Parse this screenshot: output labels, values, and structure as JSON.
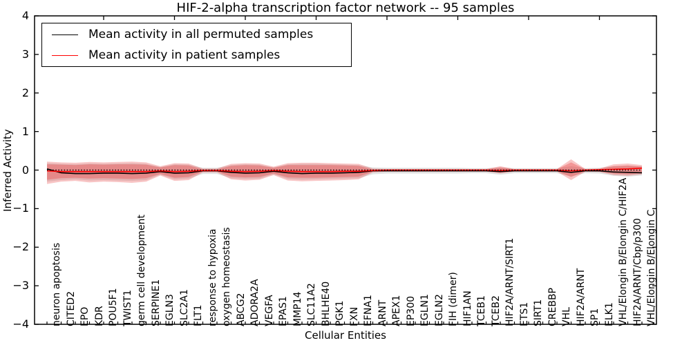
{
  "title": "HIF-2-alpha transcription factor network -- 95 samples",
  "axes": {
    "ylabel": "Inferred Activity",
    "xlabel": "Cellular Entities",
    "yticks": [
      "4",
      "3",
      "2",
      "1",
      "0",
      "−1",
      "−2",
      "−3",
      "−4"
    ]
  },
  "legend": {
    "items": [
      {
        "label": "Mean activity in all permuted samples",
        "color": "#000000"
      },
      {
        "label": "Mean activity in patient samples",
        "color": "#ff0000"
      }
    ]
  },
  "chart_data": {
    "type": "line",
    "title": "HIF-2-alpha transcription factor network -- 95 samples",
    "xlabel": "Cellular Entities",
    "ylabel": "Inferred Activity",
    "ylim": [
      -4,
      4
    ],
    "grid": false,
    "legend_position": "upper left",
    "zero_line": 0,
    "categories": [
      "neuron apoptosis",
      "CITED2",
      "EPO",
      "KDR",
      "POU5F1",
      "TWIST1",
      "germ cell development",
      "SERPINE1",
      "EGLN3",
      "SLC2A1",
      "FLT1",
      "response to hypoxia",
      "oxygen homeostasis",
      "ABCG2",
      "ADORA2A",
      "VEGFA",
      "EPAS1",
      "MMP14",
      "SLC11A2",
      "BHLHE40",
      "PGK1",
      "FXN",
      "EFNA1",
      "ARNT",
      "APEX1",
      "EP300",
      "EGLN1",
      "EGLN2",
      "FIH (dimer)",
      "HIF1AN",
      "TCEB1",
      "TCEB2",
      "HIF2A/ARNT/SIRT1",
      "ETS1",
      "SIRT1",
      "CREBBP",
      "VHL",
      "HIF2A/ARNT",
      "SP1",
      "ELK1",
      "VHL/Elongin B/Elongin C/HIF2A",
      "HIF2A/ARNT/Cbp/p300",
      "VHL/Elongin B/Elongin C"
    ],
    "series": [
      {
        "name": "Mean activity in all permuted samples",
        "color": "#000000",
        "style": "solid",
        "values": [
          0.03,
          -0.07,
          -0.09,
          -0.09,
          -0.08,
          -0.08,
          -0.09,
          -0.08,
          -0.04,
          -0.08,
          -0.07,
          -0.02,
          -0.02,
          -0.06,
          -0.08,
          -0.07,
          -0.03,
          -0.07,
          -0.09,
          -0.08,
          -0.08,
          -0.07,
          -0.06,
          -0.02,
          -0.02,
          -0.02,
          -0.02,
          -0.02,
          -0.02,
          -0.02,
          -0.02,
          -0.02,
          -0.04,
          -0.02,
          -0.02,
          -0.02,
          -0.02,
          -0.06,
          -0.02,
          -0.02,
          -0.05,
          -0.06,
          -0.07
        ]
      },
      {
        "name": "Mean activity in patient samples",
        "color": "#ff0000",
        "style": "solid",
        "values": [
          -0.02,
          -0.04,
          -0.04,
          -0.04,
          -0.04,
          -0.04,
          -0.04,
          -0.04,
          -0.02,
          -0.04,
          -0.03,
          -0.01,
          -0.01,
          -0.03,
          -0.04,
          -0.03,
          -0.01,
          -0.03,
          -0.04,
          -0.04,
          -0.04,
          -0.03,
          -0.03,
          -0.01,
          0.0,
          0.0,
          0.0,
          0.0,
          0.0,
          0.0,
          0.0,
          0.0,
          -0.01,
          0.0,
          0.0,
          0.0,
          0.0,
          -0.02,
          0.0,
          0.01,
          0.02,
          0.03,
          0.05
        ]
      }
    ],
    "bands": [
      {
        "name": "permuted-range",
        "color": "#999999",
        "opacity": 0.28,
        "upper": [
          0.18,
          0.16,
          0.15,
          0.17,
          0.16,
          0.17,
          0.18,
          0.16,
          0.08,
          0.15,
          0.14,
          0.06,
          0.06,
          0.13,
          0.15,
          0.14,
          0.07,
          0.15,
          0.16,
          0.16,
          0.15,
          0.14,
          0.13,
          0.07,
          0.06,
          0.06,
          0.06,
          0.06,
          0.06,
          0.06,
          0.05,
          0.05,
          0.07,
          0.05,
          0.05,
          0.05,
          0.05,
          0.1,
          0.05,
          0.06,
          0.1,
          0.11,
          0.1
        ],
        "lower": [
          -0.3,
          -0.26,
          -0.24,
          -0.27,
          -0.26,
          -0.27,
          -0.28,
          -0.26,
          -0.12,
          -0.24,
          -0.22,
          -0.1,
          -0.1,
          -0.21,
          -0.23,
          -0.22,
          -0.11,
          -0.23,
          -0.25,
          -0.24,
          -0.23,
          -0.22,
          -0.21,
          -0.11,
          -0.09,
          -0.09,
          -0.09,
          -0.09,
          -0.09,
          -0.09,
          -0.08,
          -0.08,
          -0.12,
          -0.08,
          -0.08,
          -0.08,
          -0.08,
          -0.16,
          -0.08,
          -0.09,
          -0.15,
          -0.17,
          -0.14
        ]
      },
      {
        "name": "patient-outer",
        "color": "#e84040",
        "opacity": 0.3,
        "upper": [
          0.22,
          0.2,
          0.19,
          0.21,
          0.2,
          0.21,
          0.22,
          0.2,
          0.1,
          0.18,
          0.17,
          0.04,
          0.04,
          0.16,
          0.18,
          0.17,
          0.09,
          0.18,
          0.19,
          0.19,
          0.18,
          0.17,
          0.16,
          0.04,
          0.03,
          0.03,
          0.03,
          0.03,
          0.03,
          0.03,
          0.03,
          0.03,
          0.1,
          0.03,
          0.03,
          0.03,
          0.03,
          0.28,
          0.03,
          0.04,
          0.15,
          0.17,
          0.13
        ],
        "lower": [
          -0.36,
          -0.3,
          -0.28,
          -0.32,
          -0.3,
          -0.31,
          -0.33,
          -0.3,
          -0.14,
          -0.28,
          -0.26,
          -0.06,
          -0.06,
          -0.24,
          -0.27,
          -0.25,
          -0.13,
          -0.27,
          -0.29,
          -0.28,
          -0.27,
          -0.26,
          -0.24,
          -0.06,
          -0.04,
          -0.04,
          -0.04,
          -0.04,
          -0.04,
          -0.04,
          -0.04,
          -0.04,
          -0.09,
          -0.04,
          -0.04,
          -0.04,
          -0.04,
          -0.26,
          -0.04,
          -0.05,
          -0.13,
          -0.15,
          -0.11
        ]
      },
      {
        "name": "patient-inner",
        "color": "#e84040",
        "opacity": 0.35,
        "upper": [
          0.15,
          0.14,
          0.13,
          0.15,
          0.14,
          0.15,
          0.15,
          0.14,
          0.07,
          0.13,
          0.12,
          0.02,
          0.02,
          0.11,
          0.13,
          0.12,
          0.06,
          0.13,
          0.13,
          0.13,
          0.13,
          0.12,
          0.11,
          0.02,
          0.02,
          0.02,
          0.02,
          0.02,
          0.02,
          0.02,
          0.02,
          0.02,
          0.07,
          0.02,
          0.02,
          0.02,
          0.02,
          0.2,
          0.02,
          0.03,
          0.1,
          0.12,
          0.09
        ],
        "lower": [
          -0.25,
          -0.21,
          -0.2,
          -0.22,
          -0.21,
          -0.22,
          -0.23,
          -0.21,
          -0.1,
          -0.2,
          -0.18,
          -0.04,
          -0.04,
          -0.17,
          -0.19,
          -0.18,
          -0.09,
          -0.19,
          -0.2,
          -0.2,
          -0.19,
          -0.18,
          -0.17,
          -0.04,
          -0.03,
          -0.03,
          -0.03,
          -0.03,
          -0.03,
          -0.03,
          -0.03,
          -0.03,
          -0.06,
          -0.03,
          -0.03,
          -0.03,
          -0.03,
          -0.18,
          -0.03,
          -0.04,
          -0.09,
          -0.11,
          -0.08
        ]
      }
    ]
  }
}
